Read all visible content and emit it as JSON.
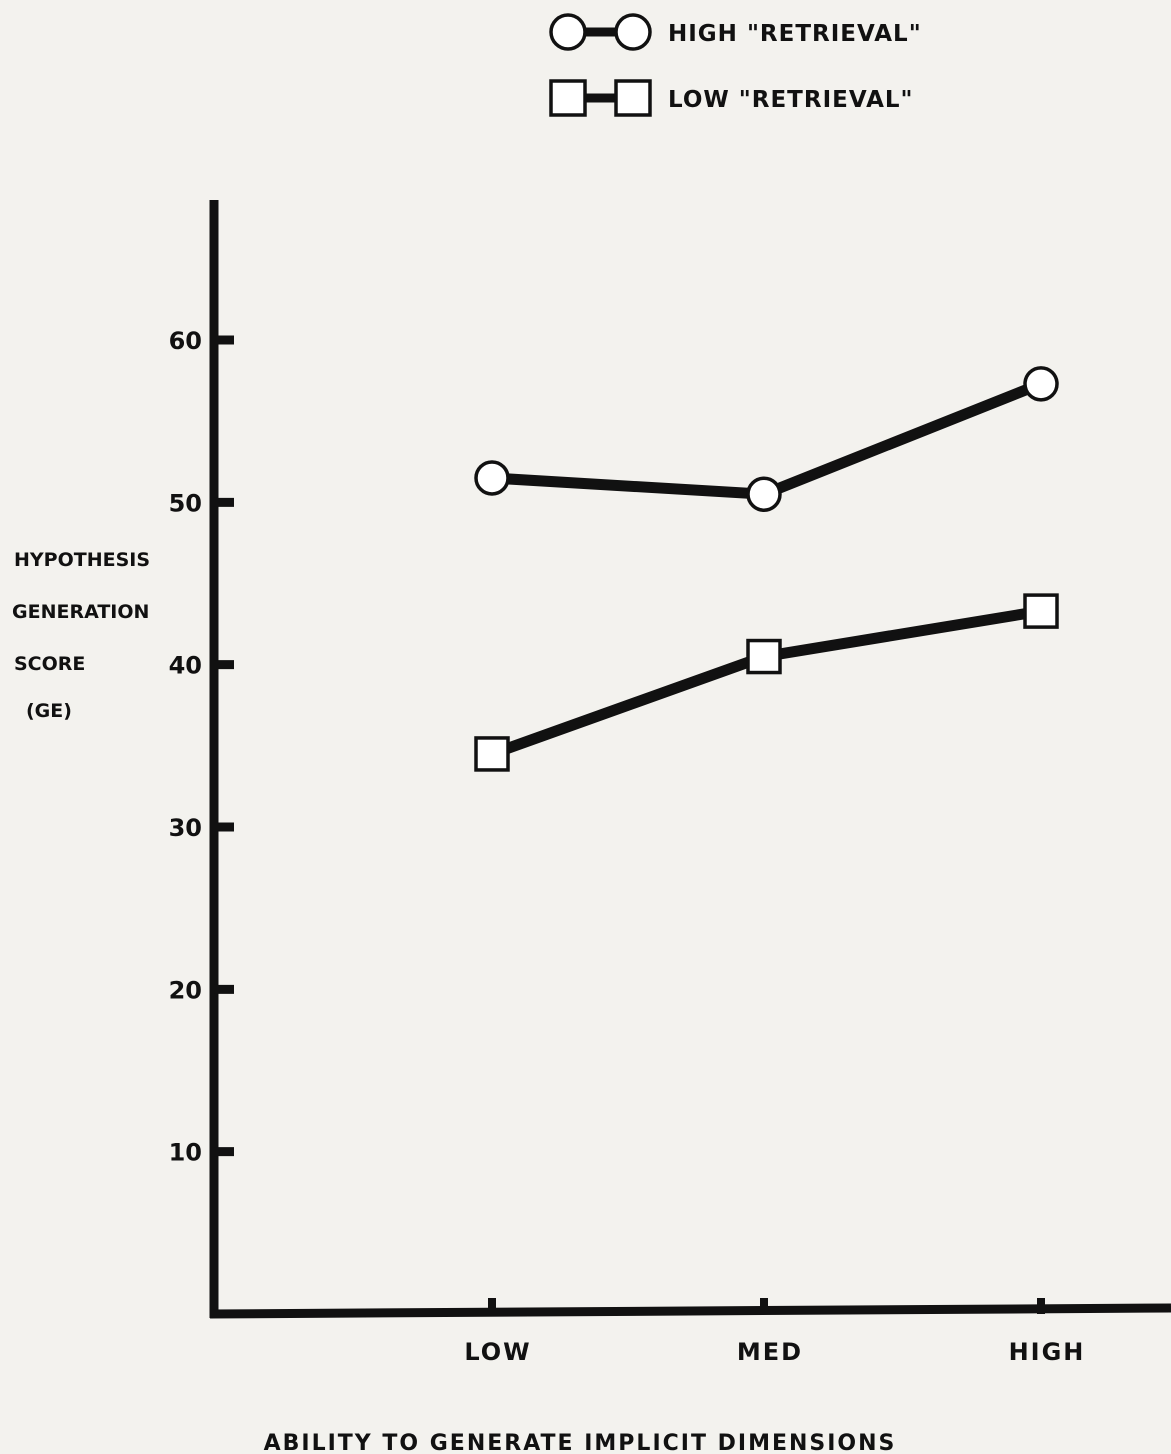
{
  "chart_data": {
    "type": "line",
    "categories": [
      "LOW",
      "MED",
      "HIGH"
    ],
    "series": [
      {
        "name": "HIGH \"RETRIEVAL\"",
        "marker": "circle",
        "values": [
          51.5,
          50.5,
          57.3
        ]
      },
      {
        "name": "LOW \"RETRIEVAL\"",
        "marker": "square",
        "values": [
          34.5,
          40.5,
          43.3
        ]
      }
    ],
    "yticks": [
      10,
      20,
      30,
      40,
      50,
      60
    ],
    "ylim": [
      0,
      68.5
    ],
    "ylabel": [
      "HYPOTHESIS",
      "GENERATION",
      "SCORE",
      "(GE)"
    ],
    "xlabel": "ABILITY TO GENERATE IMPLICIT DIMENSIONS",
    "title": "",
    "grid": false,
    "legend_position": "top-right",
    "line_color": "#111111",
    "background_color": "#f3f2ee"
  }
}
